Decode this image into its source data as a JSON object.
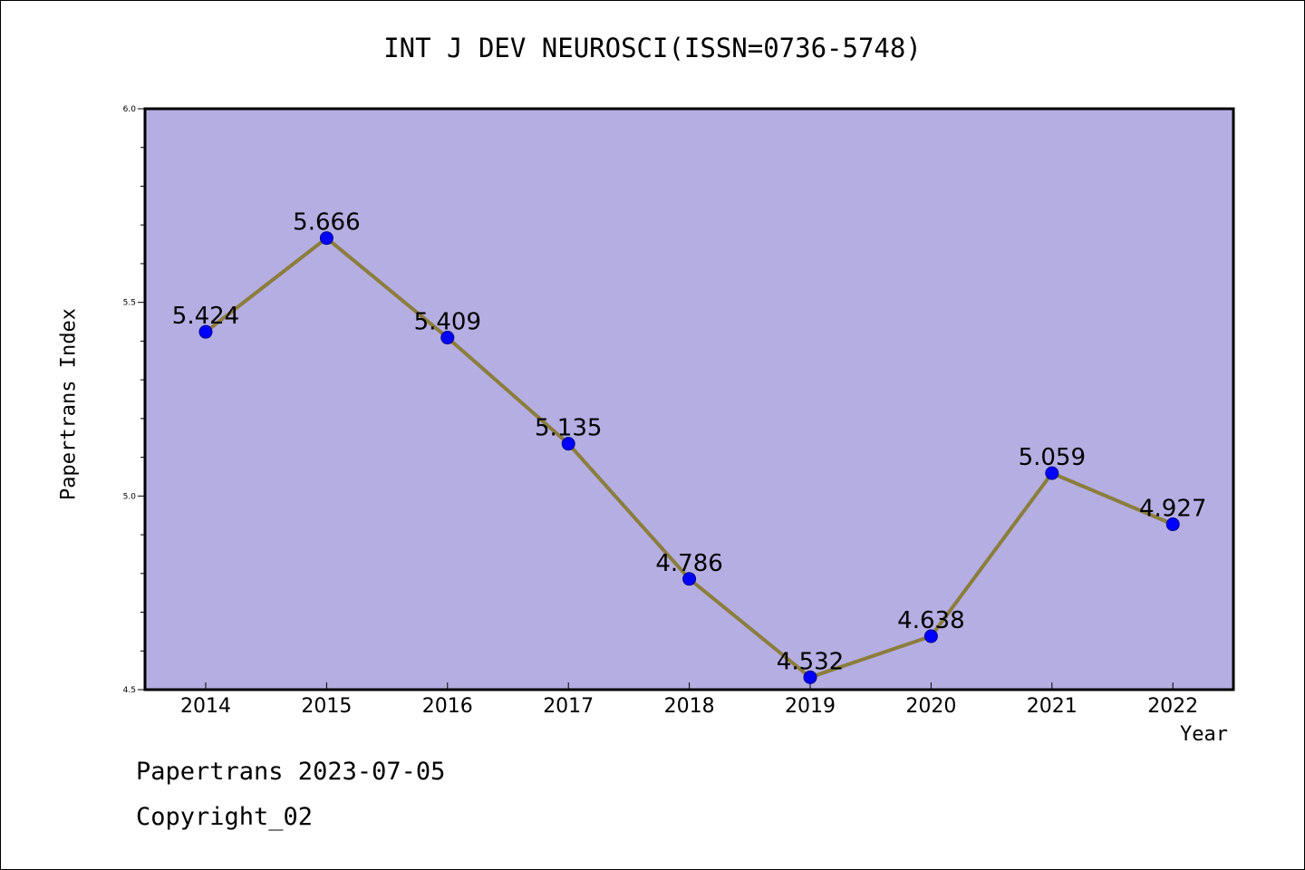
{
  "chart_data": {
    "type": "line",
    "title": "INT J DEV NEUROSCI(ISSN=0736-5748)",
    "xlabel": "Year",
    "ylabel": "Papertrans Index",
    "categories": [
      "2014",
      "2015",
      "2016",
      "2017",
      "2018",
      "2019",
      "2020",
      "2021",
      "2022"
    ],
    "values": [
      5.424,
      5.666,
      5.409,
      5.135,
      4.786,
      4.532,
      4.638,
      5.059,
      4.927
    ],
    "value_labels": [
      "5.424",
      "5.666",
      "5.409",
      "5.135",
      "4.786",
      "4.532",
      "4.638",
      "5.059",
      "4.927"
    ],
    "ylim": [
      4.5,
      6.0
    ],
    "y_ticks": [
      "4.5",
      "5.0",
      "5.5",
      "6.0"
    ],
    "grid": false,
    "colors": {
      "plot_background": "#b5aee2",
      "line": "#8b7d3c",
      "marker": "#0000ff"
    }
  },
  "footer": {
    "line1": "Papertrans 2023-07-05",
    "line2": "Copyright_02"
  }
}
